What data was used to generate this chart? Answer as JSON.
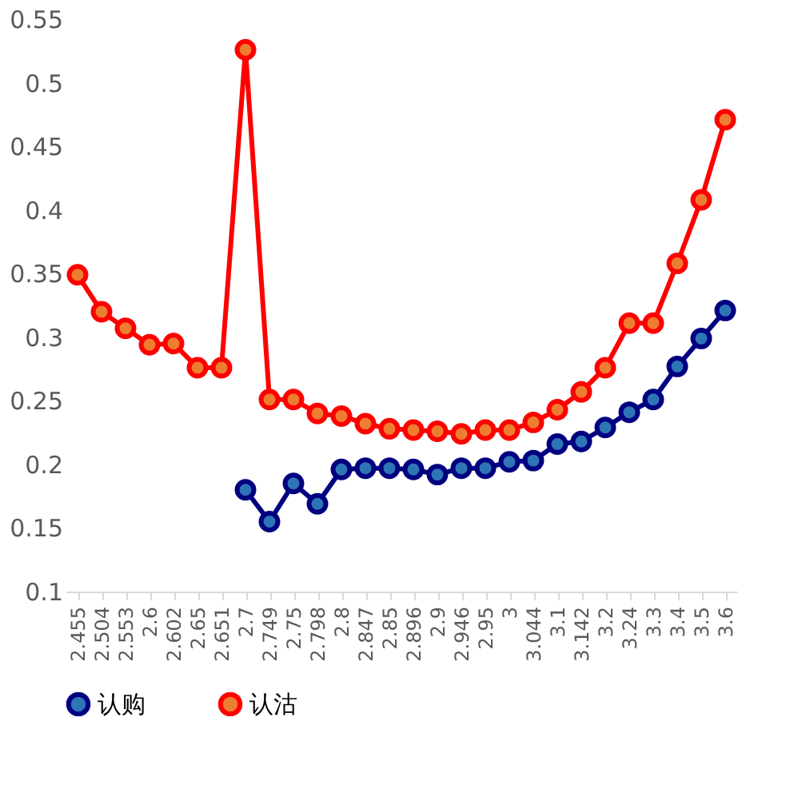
{
  "chart_data": {
    "type": "line",
    "categories": [
      "2.455",
      "2.504",
      "2.553",
      "2.6",
      "2.602",
      "2.65",
      "2.651",
      "2.7",
      "2.749",
      "2.75",
      "2.798",
      "2.8",
      "2.847",
      "2.85",
      "2.896",
      "2.9",
      "2.946",
      "2.95",
      "3",
      "3.044",
      "3.1",
      "3.142",
      "3.2",
      "3.24",
      "3.3",
      "3.4",
      "3.5",
      "3.6"
    ],
    "series": [
      {
        "name": "认购",
        "color": "#000080",
        "values": [
          null,
          null,
          null,
          null,
          null,
          null,
          null,
          0.18,
          0.155,
          0.185,
          0.169,
          0.196,
          0.197,
          0.197,
          0.196,
          0.192,
          0.197,
          0.197,
          0.202,
          0.203,
          0.216,
          0.218,
          0.229,
          0.241,
          0.251,
          0.277,
          0.299,
          0.321
        ]
      },
      {
        "name": "认沽",
        "color": "#ff0000",
        "values": [
          0.349,
          0.32,
          0.307,
          0.294,
          0.295,
          0.276,
          0.276,
          0.526,
          0.251,
          0.251,
          0.24,
          0.238,
          0.232,
          0.228,
          0.227,
          0.226,
          0.224,
          0.227,
          0.227,
          0.233,
          0.243,
          0.257,
          0.276,
          0.311,
          0.311,
          0.358,
          0.408,
          0.471
        ]
      }
    ],
    "ylim": [
      0.1,
      0.55
    ],
    "yticks": [
      0.1,
      0.15,
      0.2,
      0.25,
      0.3,
      0.35,
      0.4,
      0.45,
      0.5,
      0.55
    ],
    "grid": false,
    "legend": "bottom",
    "marker": "circle",
    "line_style": "solid"
  }
}
